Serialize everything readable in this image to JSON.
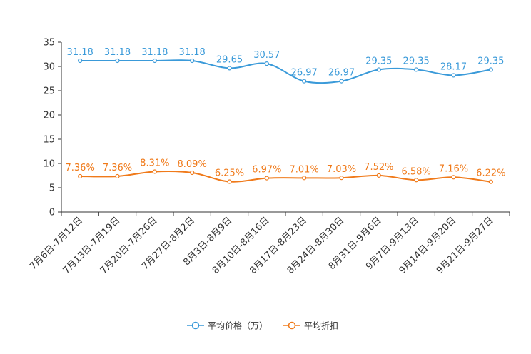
{
  "chart_data": {
    "type": "line",
    "title": "",
    "xlabel": "",
    "ylabel": "",
    "ylim": [
      0,
      35
    ],
    "yticks": [
      0,
      5,
      10,
      15,
      20,
      25,
      30,
      35
    ],
    "grid": false,
    "legend_position": "bottom-center",
    "categories": [
      "7月6日-7月12日",
      "7月13日-7月19日",
      "7月20日-7月26日",
      "7月27日-8月2日",
      "8月3日-8月9日",
      "8月10日-8月16日",
      "8月17日-8月23日",
      "8月24日-8月30日",
      "8月31日-9月6日",
      "9月7日-9月13日",
      "9月14日-9月20日",
      "9月21日-9月27日"
    ],
    "series": [
      {
        "name": "平均价格（万）",
        "color": "#3a9ad9",
        "values": [
          31.18,
          31.18,
          31.18,
          31.18,
          29.65,
          30.57,
          26.97,
          26.97,
          29.35,
          29.35,
          28.17,
          29.35
        ],
        "labels": [
          "31.18",
          "31.18",
          "31.18",
          "31.18",
          "29.65",
          "30.57",
          "26.97",
          "26.97",
          "29.35",
          "29.35",
          "28.17",
          "29.35"
        ]
      },
      {
        "name": "平均折扣",
        "color": "#f07a1a",
        "values": [
          7.36,
          7.36,
          8.31,
          8.09,
          6.25,
          6.97,
          7.01,
          7.03,
          7.52,
          6.58,
          7.16,
          6.22
        ],
        "labels": [
          "7.36%",
          "7.36%",
          "8.31%",
          "8.09%",
          "6.25%",
          "6.97%",
          "7.01%",
          "7.03%",
          "7.52%",
          "6.58%",
          "7.16%",
          "6.22%"
        ]
      }
    ]
  }
}
